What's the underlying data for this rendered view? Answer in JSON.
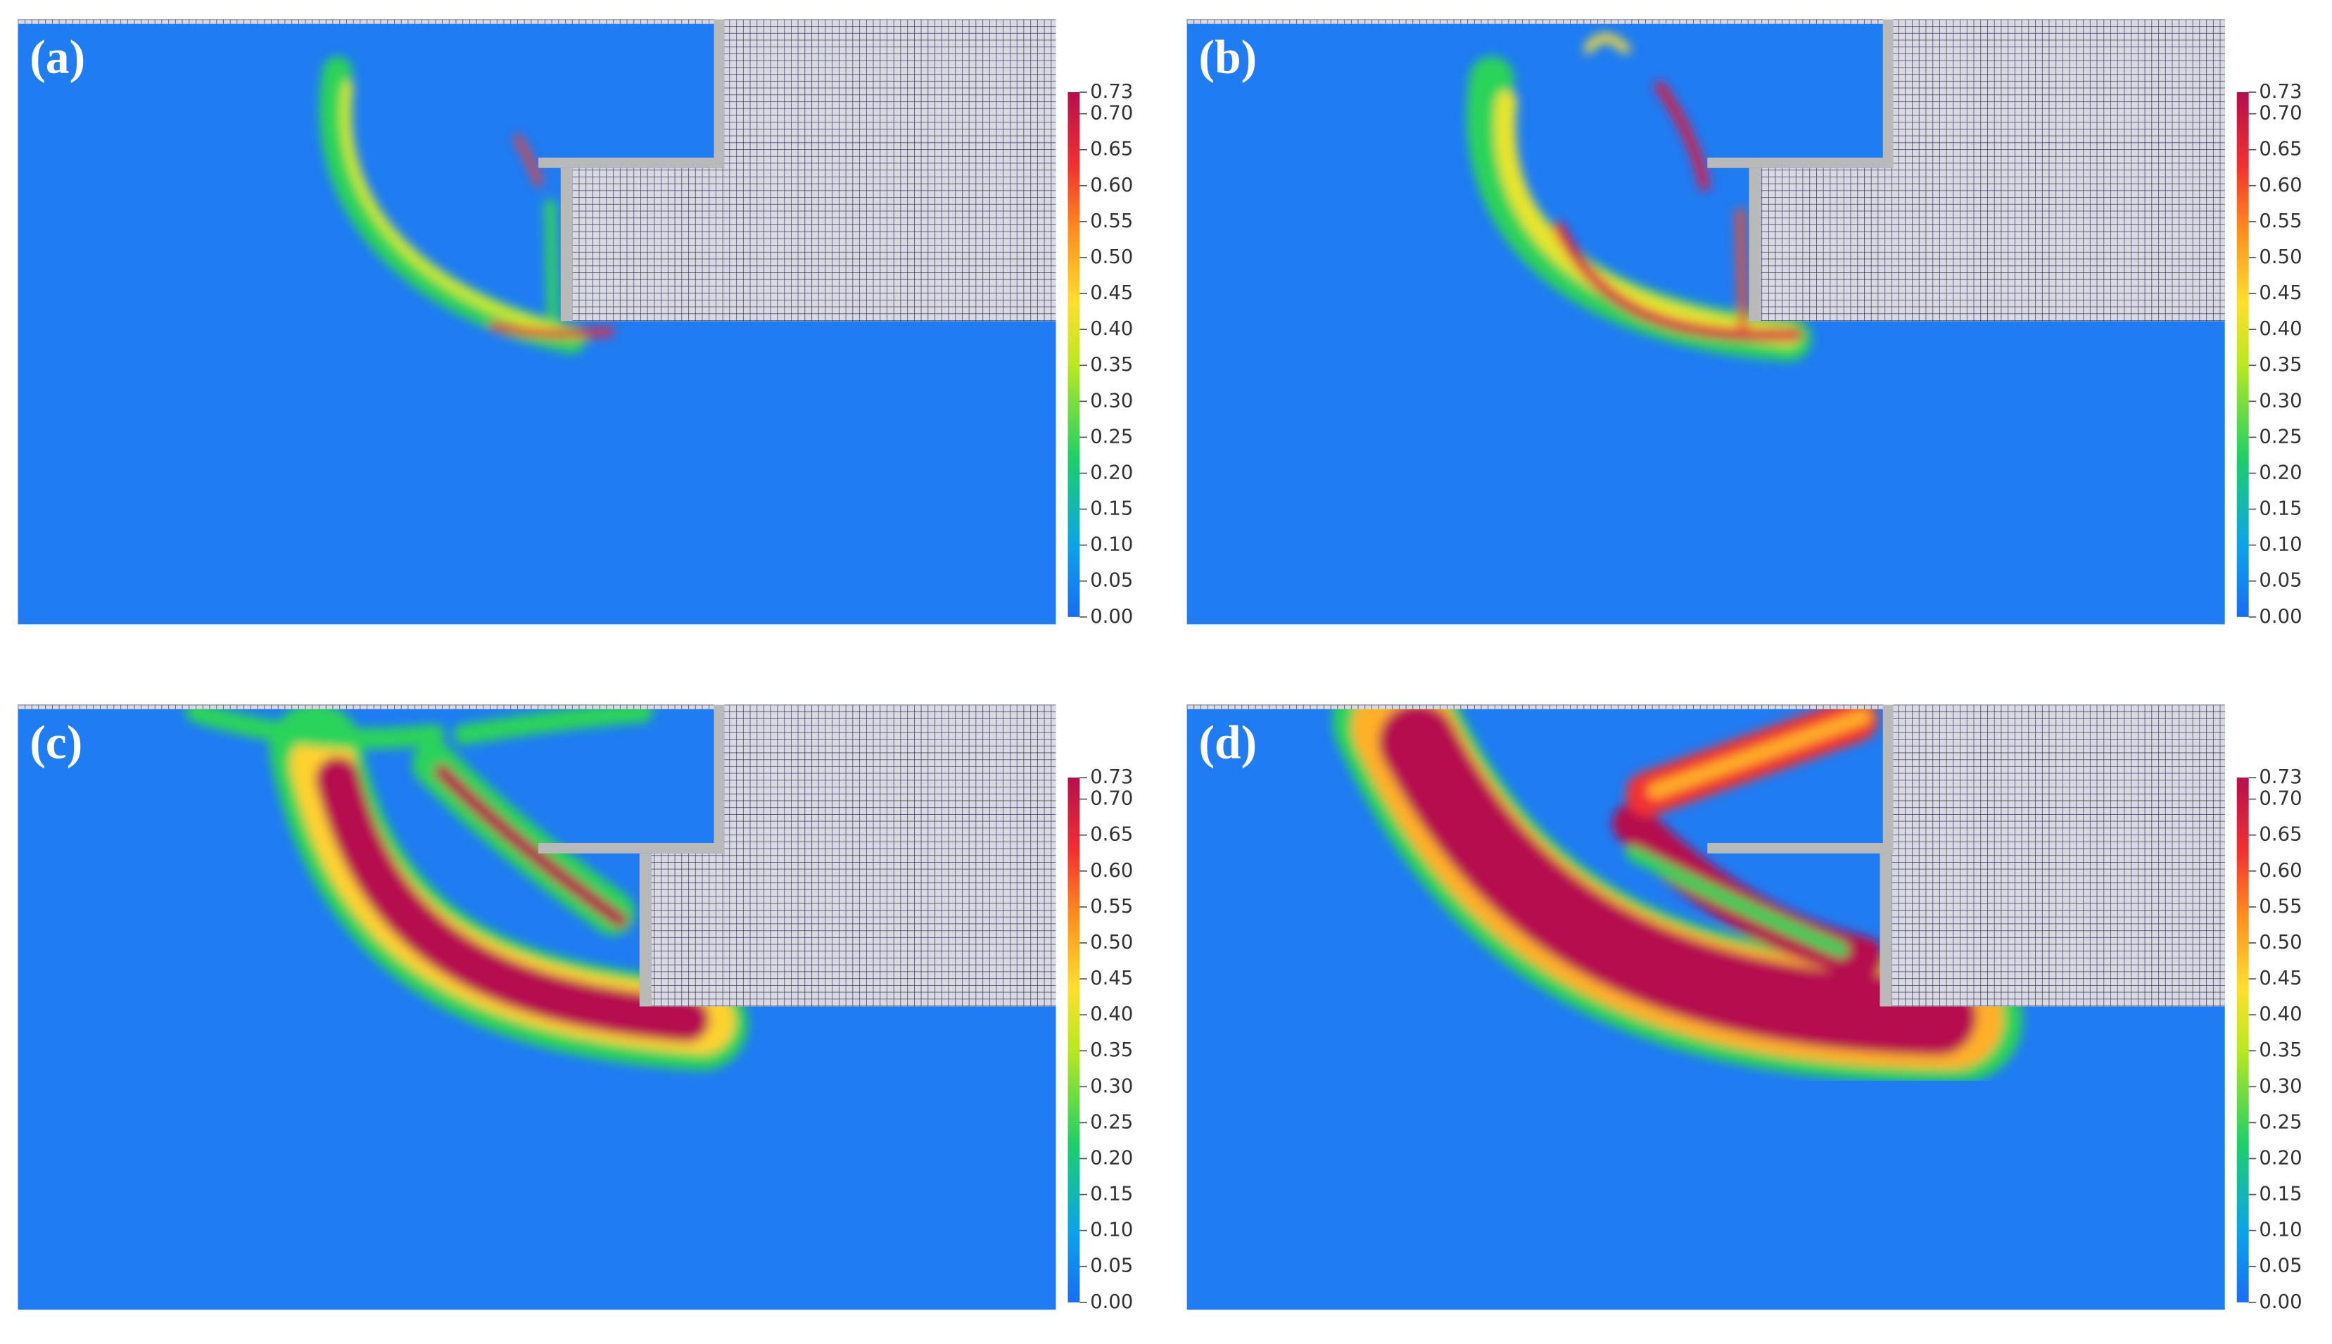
{
  "panels": [
    {
      "label": "(a)"
    },
    {
      "label": "(b)"
    },
    {
      "label": "(c)"
    },
    {
      "label": "(d)"
    }
  ],
  "colorbar": {
    "range": [
      0,
      0.73
    ],
    "ticks": [
      {
        "value": 0,
        "label": "0.00"
      },
      0.05,
      {
        "value": 0.1,
        "label": "0.10"
      },
      0.15,
      {
        "value": 0.2,
        "label": "0.20"
      },
      0.25,
      {
        "value": 0.3,
        "label": "0.30"
      },
      0.35,
      {
        "value": 0.4,
        "label": "0.40"
      },
      0.45,
      {
        "value": 0.5,
        "label": "0.50"
      },
      0.55,
      {
        "value": 0.6,
        "label": "0.60"
      },
      0.65,
      {
        "value": 0.7,
        "label": "0.70"
      },
      0.73
    ]
  }
}
